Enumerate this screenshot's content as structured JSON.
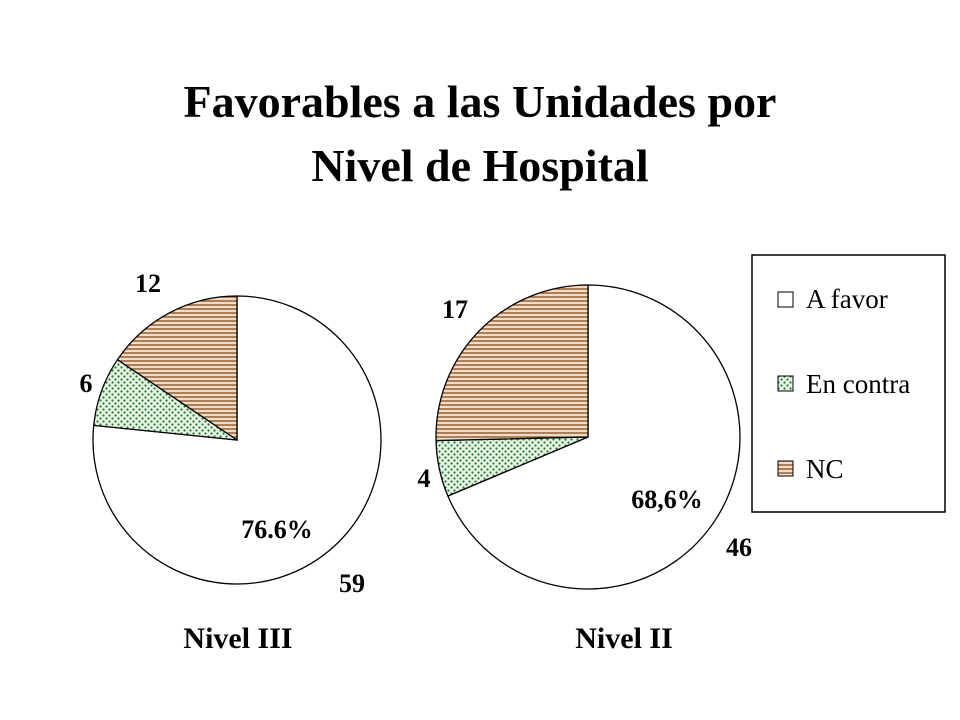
{
  "title_line1": "Favorables a las Unidades por",
  "title_line2": "Nivel de Hospital",
  "colors": {
    "a_favor": "#ffffff",
    "en_contra_bg": "#e8f4e6",
    "en_contra_dots": "#1d7a2a",
    "nc_bg": "#f1dcc8",
    "nc_lines": "#8a4b18"
  },
  "chart_data": [
    {
      "type": "pie",
      "name": "Nivel III",
      "categories": [
        "A favor",
        "En contra",
        "NC"
      ],
      "values": [
        59,
        6,
        12
      ],
      "value_labels": [
        "59",
        "6",
        "12"
      ],
      "annotation": "76.6%",
      "caption": "Nivel III"
    },
    {
      "type": "pie",
      "name": "Nivel II",
      "categories": [
        "A favor",
        "En contra",
        "NC"
      ],
      "values": [
        46,
        4,
        17
      ],
      "value_labels": [
        "46",
        "4",
        "17"
      ],
      "annotation": "68,6%",
      "caption": "Nivel II"
    }
  ],
  "legend": {
    "items": [
      {
        "label": "A favor",
        "pattern": "a_favor"
      },
      {
        "label": "En contra",
        "pattern": "en_contra"
      },
      {
        "label": "NC",
        "pattern": "nc"
      }
    ]
  }
}
